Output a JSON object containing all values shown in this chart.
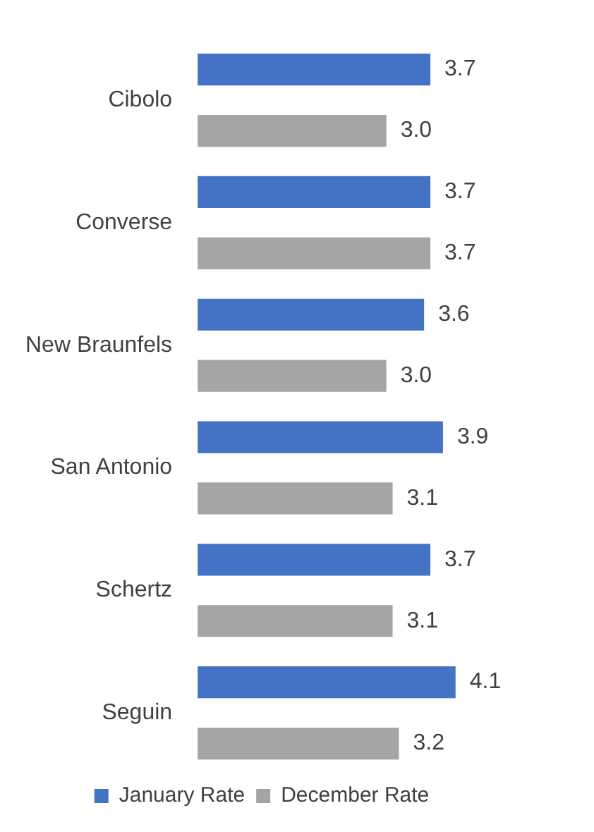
{
  "chart_data": {
    "type": "bar",
    "orientation": "horizontal",
    "categories": [
      "Cibolo",
      "Converse",
      "New Braunfels",
      "San Antonio",
      "Schertz",
      "Seguin"
    ],
    "series": [
      {
        "name": "January Rate",
        "color": "#4472c4",
        "values": [
          3.7,
          3.7,
          3.6,
          3.9,
          3.7,
          4.1
        ],
        "value_labels": [
          "3.7",
          "3.7",
          "3.6",
          "3.9",
          "3.7",
          "4.1"
        ]
      },
      {
        "name": "December Rate",
        "color": "#a5a5a5",
        "values": [
          3.0,
          3.7,
          3.0,
          3.1,
          3.1,
          3.2
        ],
        "value_labels": [
          "3.0",
          "3.7",
          "3.0",
          "3.1",
          "3.1",
          "3.2"
        ]
      }
    ],
    "tick_labels": "y",
    "grid": false,
    "legend": "bottom"
  }
}
